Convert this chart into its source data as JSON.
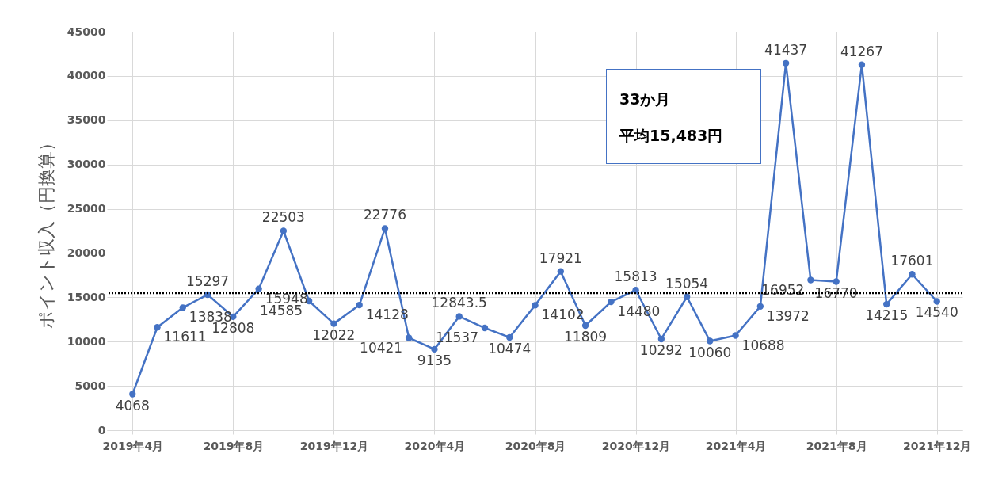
{
  "chart_data": {
    "type": "line",
    "ylabel": "ポイント収入（円換算）",
    "x": [
      "2019-04",
      "2019-05",
      "2019-06",
      "2019-07",
      "2019-08",
      "2019-09",
      "2019-10",
      "2019-11",
      "2019-12",
      "2020-01",
      "2020-02",
      "2020-03",
      "2020-04",
      "2020-05",
      "2020-06",
      "2020-07",
      "2020-08",
      "2020-09",
      "2020-10",
      "2020-11",
      "2020-12",
      "2021-01",
      "2021-02",
      "2021-03",
      "2021-04",
      "2021-05",
      "2021-06",
      "2021-07",
      "2021-08",
      "2021-09",
      "2021-10",
      "2021-11",
      "2021-12"
    ],
    "series": [
      {
        "color": "#4472c4",
        "values": [
          4068,
          11611,
          13838,
          15297,
          12808,
          15948,
          22503,
          14585,
          12022,
          14128,
          22776,
          10421,
          9135,
          12843.5,
          11537,
          10474,
          14102,
          17921,
          11809,
          14480,
          15813,
          10292,
          15054,
          10060,
          10688,
          13972,
          41437,
          16952,
          16770,
          41267,
          14215,
          17601,
          14540
        ]
      }
    ],
    "xlim": [
      "2019-03",
      "2022-01"
    ],
    "xticks": [
      {
        "value": "2019-04",
        "label": "2019年4月"
      },
      {
        "value": "2019-08",
        "label": "2019年8月"
      },
      {
        "value": "2019-12",
        "label": "2019年12月"
      },
      {
        "value": "2020-04",
        "label": "2020年4月"
      },
      {
        "value": "2020-08",
        "label": "2020年8月"
      },
      {
        "value": "2020-12",
        "label": "2020年12月"
      },
      {
        "value": "2021-04",
        "label": "2021年4月"
      },
      {
        "value": "2021-08",
        "label": "2021年8月"
      },
      {
        "value": "2021-12",
        "label": "2021年12月"
      }
    ],
    "ylim": [
      0,
      45000
    ],
    "yticks": [
      0,
      5000,
      10000,
      15000,
      20000,
      25000,
      30000,
      35000,
      40000,
      45000
    ],
    "ref_lines": [
      {
        "axis": "y",
        "value": 15483,
        "color": "#000000",
        "line_style": "dotted"
      }
    ],
    "annotations": [
      "33か月",
      "平均15,483円"
    ],
    "grid": true,
    "marker": "circle",
    "line_style": "solid",
    "data_labels": true
  }
}
